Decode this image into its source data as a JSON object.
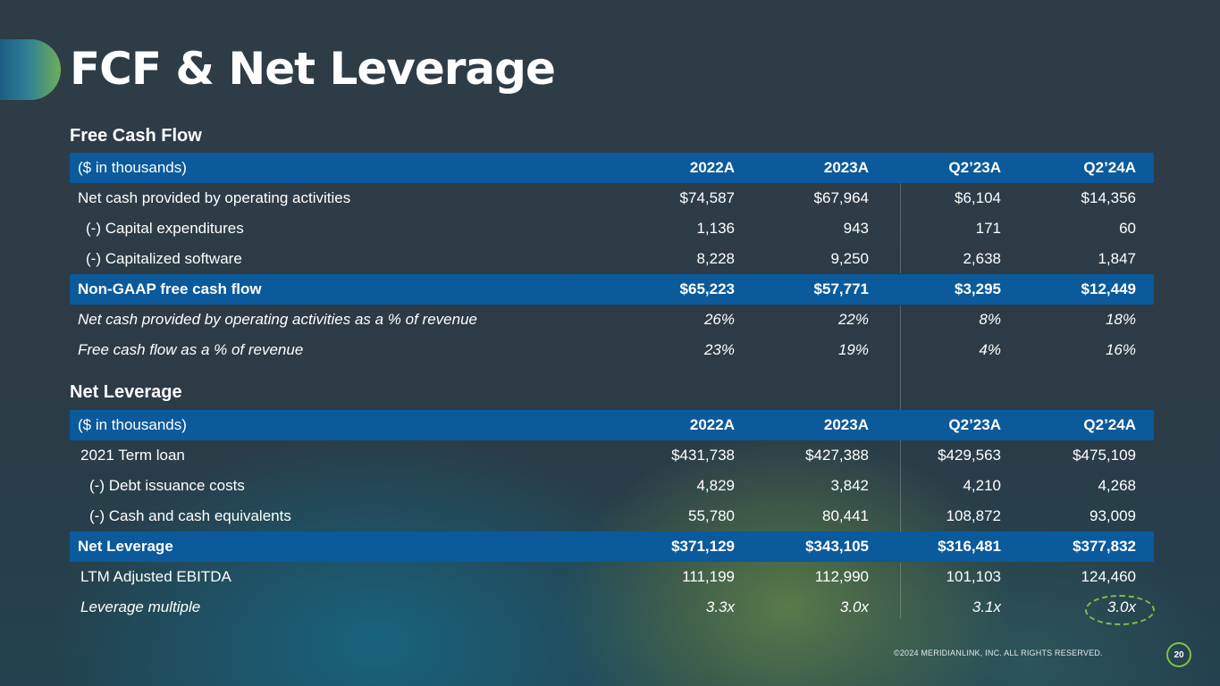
{
  "title": "FCF & Net Leverage",
  "fcf": {
    "section_title": "Free Cash Flow",
    "header": [
      "($ in thousands)",
      "2022A",
      "2023A",
      "Q2’23A",
      "Q2’24A"
    ],
    "rows": [
      [
        "Net cash provided by operating activities",
        "$74,587",
        "$67,964",
        "$6,104",
        "$14,356"
      ],
      [
        "(-) Capital expenditures",
        "1,136",
        "943",
        "171",
        "60"
      ],
      [
        "(-) Capitalized software",
        "8,228",
        "9,250",
        "2,638",
        "1,847"
      ],
      [
        "Non-GAAP free cash flow",
        "$65,223",
        "$57,771",
        "$3,295",
        "$12,449"
      ],
      [
        "Net cash provided by operating activities as a % of revenue",
        "26%",
        "22%",
        "8%",
        "18%"
      ],
      [
        "Free cash flow as a % of revenue",
        "23%",
        "19%",
        "4%",
        "16%"
      ]
    ]
  },
  "leverage": {
    "section_title": "Net Leverage",
    "header": [
      "($ in thousands)",
      "2022A",
      "2023A",
      "Q2’23A",
      "Q2’24A"
    ],
    "rows": [
      [
        "2021 Term loan",
        "$431,738",
        "$427,388",
        "$429,563",
        "$475,109"
      ],
      [
        "(-) Debt issuance costs",
        "4,829",
        "3,842",
        "4,210",
        "4,268"
      ],
      [
        "(-) Cash and cash equivalents",
        "55,780",
        "80,441",
        "108,872",
        "93,009"
      ],
      [
        "Net Leverage",
        "$371,129",
        "$343,105",
        "$316,481",
        "$377,832"
      ],
      [
        "LTM Adjusted EBITDA",
        "111,199",
        "112,990",
        "101,103",
        "124,460"
      ],
      [
        "Leverage multiple",
        "3.3x",
        "3.0x",
        "3.1x",
        "3.0x"
      ]
    ]
  },
  "footer": {
    "copyright": "©2024 MERIDIANLINK, INC. ALL RIGHTS RESERVED.",
    "page_number": "20"
  },
  "colors": {
    "table_header": "#0a5a9c",
    "accent_green": "#7fc04a",
    "background": "#2d3d47"
  }
}
